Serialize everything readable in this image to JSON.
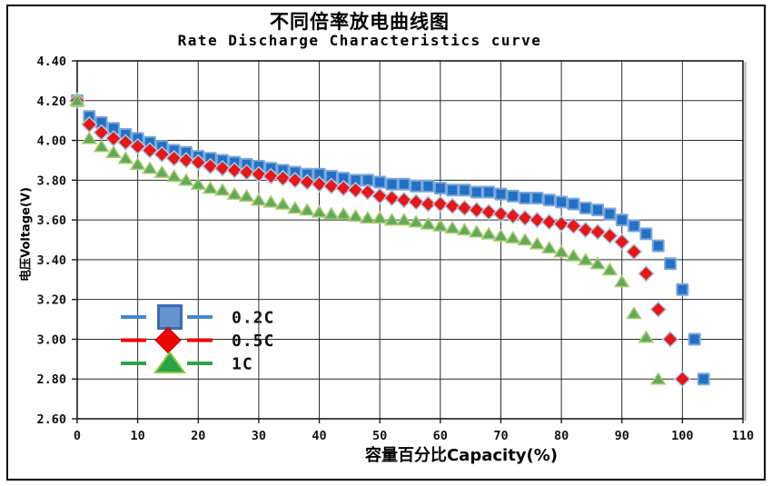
{
  "window": {
    "background": "#ffffff",
    "frame_border": "#000000"
  },
  "chart": {
    "title": "不同倍率放电曲线图",
    "subtitle": "Rate Discharge Characteristics curve",
    "x_axis": {
      "label": "容量百分比Capacity(%)"
    },
    "y_axis": {
      "label": "电压Voltage(V)"
    }
  },
  "chart_data": {
    "type": "scatter",
    "title": "不同倍率放电曲线图",
    "subtitle": "Rate Discharge Characteristics curve",
    "xlabel": "容量百分比Capacity(%)",
    "ylabel": "电压Voltage(V)",
    "xlim": [
      0,
      110
    ],
    "ylim": [
      2.6,
      4.4
    ],
    "x_ticks": [
      0,
      10,
      20,
      30,
      40,
      50,
      60,
      70,
      80,
      90,
      100,
      110
    ],
    "y_ticks": [
      "4.40",
      "4.20",
      "4.00",
      "3.80",
      "3.60",
      "3.40",
      "3.20",
      "3.00",
      "2.80",
      "2.60"
    ],
    "grid": true,
    "grid_color": "#2b2b2b",
    "axis_color": "#1a1a1a",
    "legend_position": "inside-left",
    "legend": [
      {
        "label": "0.2C",
        "text_color": "#3e86c8",
        "line_color": "#4a86c8",
        "marker": "square",
        "marker_fill": "#6593cf",
        "marker_stroke": "#3a6db8"
      },
      {
        "label": "0.5C",
        "text_color": "#ee0000",
        "line_color": "#ee0000",
        "marker": "diamond",
        "marker_fill": "#ee0404",
        "marker_stroke": "#cc0000"
      },
      {
        "label": "1C",
        "text_color": "#a7c44a",
        "line_color": "#2fa14c",
        "marker": "triangle",
        "marker_fill": "#27a348",
        "marker_stroke": "#8cc63f"
      }
    ],
    "series": [
      {
        "name": "0.2C",
        "marker": "square",
        "fill": "#2470c2",
        "stroke": "#7aa8dc",
        "points": [
          [
            0,
            4.2
          ],
          [
            2,
            4.12
          ],
          [
            4,
            4.09
          ],
          [
            6,
            4.06
          ],
          [
            8,
            4.03
          ],
          [
            10,
            4.01
          ],
          [
            12,
            3.99
          ],
          [
            14,
            3.97
          ],
          [
            16,
            3.95
          ],
          [
            18,
            3.94
          ],
          [
            20,
            3.92
          ],
          [
            22,
            3.91
          ],
          [
            24,
            3.9
          ],
          [
            26,
            3.89
          ],
          [
            28,
            3.88
          ],
          [
            30,
            3.87
          ],
          [
            32,
            3.86
          ],
          [
            34,
            3.85
          ],
          [
            36,
            3.84
          ],
          [
            38,
            3.83
          ],
          [
            40,
            3.83
          ],
          [
            42,
            3.82
          ],
          [
            44,
            3.81
          ],
          [
            46,
            3.8
          ],
          [
            48,
            3.8
          ],
          [
            50,
            3.79
          ],
          [
            52,
            3.78
          ],
          [
            54,
            3.78
          ],
          [
            56,
            3.77
          ],
          [
            58,
            3.77
          ],
          [
            60,
            3.76
          ],
          [
            62,
            3.75
          ],
          [
            64,
            3.75
          ],
          [
            66,
            3.74
          ],
          [
            68,
            3.74
          ],
          [
            70,
            3.73
          ],
          [
            72,
            3.72
          ],
          [
            74,
            3.71
          ],
          [
            76,
            3.71
          ],
          [
            78,
            3.7
          ],
          [
            80,
            3.69
          ],
          [
            82,
            3.68
          ],
          [
            84,
            3.66
          ],
          [
            86,
            3.65
          ],
          [
            88,
            3.63
          ],
          [
            90,
            3.6
          ],
          [
            92,
            3.57
          ],
          [
            94,
            3.53
          ],
          [
            96,
            3.47
          ],
          [
            98,
            3.38
          ],
          [
            100,
            3.25
          ],
          [
            102,
            3.0
          ],
          [
            103.5,
            2.8
          ]
        ]
      },
      {
        "name": "0.5C",
        "marker": "diamond",
        "fill": "#e81616",
        "stroke": "#a9c9e8",
        "points": [
          [
            0,
            4.2
          ],
          [
            2,
            4.08
          ],
          [
            4,
            4.04
          ],
          [
            6,
            4.01
          ],
          [
            8,
            3.99
          ],
          [
            10,
            3.97
          ],
          [
            12,
            3.95
          ],
          [
            14,
            3.93
          ],
          [
            16,
            3.91
          ],
          [
            18,
            3.9
          ],
          [
            20,
            3.89
          ],
          [
            22,
            3.87
          ],
          [
            24,
            3.86
          ],
          [
            26,
            3.85
          ],
          [
            28,
            3.84
          ],
          [
            30,
            3.83
          ],
          [
            32,
            3.82
          ],
          [
            34,
            3.81
          ],
          [
            36,
            3.8
          ],
          [
            38,
            3.79
          ],
          [
            40,
            3.78
          ],
          [
            42,
            3.77
          ],
          [
            44,
            3.76
          ],
          [
            46,
            3.75
          ],
          [
            48,
            3.74
          ],
          [
            50,
            3.72
          ],
          [
            52,
            3.71
          ],
          [
            54,
            3.7
          ],
          [
            56,
            3.69
          ],
          [
            58,
            3.68
          ],
          [
            60,
            3.68
          ],
          [
            62,
            3.67
          ],
          [
            64,
            3.66
          ],
          [
            66,
            3.65
          ],
          [
            68,
            3.64
          ],
          [
            70,
            3.63
          ],
          [
            72,
            3.62
          ],
          [
            74,
            3.61
          ],
          [
            76,
            3.6
          ],
          [
            78,
            3.59
          ],
          [
            80,
            3.58
          ],
          [
            82,
            3.57
          ],
          [
            84,
            3.55
          ],
          [
            86,
            3.54
          ],
          [
            88,
            3.52
          ],
          [
            90,
            3.49
          ],
          [
            92,
            3.44
          ],
          [
            94,
            3.33
          ],
          [
            96,
            3.15
          ],
          [
            98,
            3.0
          ],
          [
            100,
            2.8
          ]
        ]
      },
      {
        "name": "1C",
        "marker": "triangle",
        "fill": "#63a95c",
        "stroke": "#a9cc70",
        "points": [
          [
            0,
            4.2
          ],
          [
            2,
            4.01
          ],
          [
            4,
            3.97
          ],
          [
            6,
            3.94
          ],
          [
            8,
            3.91
          ],
          [
            10,
            3.88
          ],
          [
            12,
            3.86
          ],
          [
            14,
            3.84
          ],
          [
            16,
            3.82
          ],
          [
            18,
            3.8
          ],
          [
            20,
            3.78
          ],
          [
            22,
            3.76
          ],
          [
            24,
            3.75
          ],
          [
            26,
            3.73
          ],
          [
            28,
            3.72
          ],
          [
            30,
            3.7
          ],
          [
            32,
            3.69
          ],
          [
            34,
            3.68
          ],
          [
            36,
            3.66
          ],
          [
            38,
            3.65
          ],
          [
            40,
            3.64
          ],
          [
            42,
            3.63
          ],
          [
            44,
            3.63
          ],
          [
            46,
            3.62
          ],
          [
            48,
            3.61
          ],
          [
            50,
            3.61
          ],
          [
            52,
            3.6
          ],
          [
            54,
            3.6
          ],
          [
            56,
            3.59
          ],
          [
            58,
            3.58
          ],
          [
            60,
            3.57
          ],
          [
            62,
            3.56
          ],
          [
            64,
            3.55
          ],
          [
            66,
            3.54
          ],
          [
            68,
            3.53
          ],
          [
            70,
            3.52
          ],
          [
            72,
            3.51
          ],
          [
            74,
            3.5
          ],
          [
            76,
            3.48
          ],
          [
            78,
            3.46
          ],
          [
            80,
            3.44
          ],
          [
            82,
            3.42
          ],
          [
            84,
            3.4
          ],
          [
            86,
            3.38
          ],
          [
            88,
            3.35
          ],
          [
            90,
            3.29
          ],
          [
            92,
            3.13
          ],
          [
            94,
            3.01
          ],
          [
            96,
            2.8
          ]
        ]
      }
    ]
  }
}
